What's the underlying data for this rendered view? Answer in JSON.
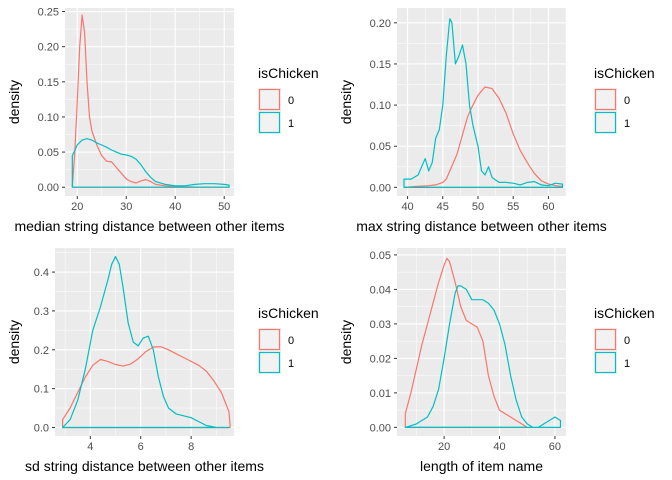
{
  "chart_data": [
    {
      "type": "line",
      "xlabel": "median string distance between other items",
      "ylabel": "density",
      "xlim": [
        17.5,
        52
      ],
      "ylim": [
        -0.0125,
        0.255
      ],
      "xticks": [
        20,
        30,
        40,
        50
      ],
      "yticks": [
        0.0,
        0.05,
        0.1,
        0.15,
        0.2,
        0.25
      ],
      "ytick_labels": [
        "0.00",
        "0.05",
        "0.10",
        "0.15",
        "0.20",
        "0.25"
      ],
      "grid": true,
      "legend": {
        "title": "isChicken",
        "entries": [
          "0",
          "1"
        ],
        "placement": "right"
      },
      "series": [
        {
          "name": "0",
          "color": "#F8766D",
          "x": [
            19,
            19.5,
            20,
            20.5,
            21,
            21.5,
            22,
            22.5,
            23,
            24,
            25,
            26,
            27,
            28,
            29,
            30,
            31,
            32,
            33,
            34,
            35,
            36,
            38,
            40,
            45,
            51
          ],
          "y": [
            0.0,
            0.05,
            0.12,
            0.2,
            0.245,
            0.22,
            0.15,
            0.1,
            0.08,
            0.06,
            0.045,
            0.037,
            0.036,
            0.028,
            0.02,
            0.012,
            0.008,
            0.006,
            0.009,
            0.011,
            0.008,
            0.004,
            0.002,
            0.001,
            0.0,
            0.0
          ]
        },
        {
          "name": "1",
          "color": "#00BFC4",
          "x": [
            19,
            19.5,
            20,
            21,
            22,
            23,
            24,
            25,
            26,
            27,
            28,
            29,
            30,
            31,
            32,
            33,
            34,
            35,
            36,
            38,
            40,
            42,
            44,
            46,
            48,
            50,
            51
          ],
          "y": [
            0.045,
            0.052,
            0.06,
            0.067,
            0.069,
            0.067,
            0.063,
            0.06,
            0.057,
            0.053,
            0.05,
            0.047,
            0.046,
            0.044,
            0.04,
            0.032,
            0.022,
            0.014,
            0.008,
            0.004,
            0.002,
            0.002,
            0.004,
            0.005,
            0.005,
            0.004,
            0.003
          ]
        }
      ]
    },
    {
      "type": "line",
      "xlabel": "max string distance between other items",
      "ylabel": "density",
      "xlim": [
        38.5,
        62.5
      ],
      "ylim": [
        -0.0105,
        0.218
      ],
      "xticks": [
        40,
        45,
        50,
        55,
        60
      ],
      "yticks": [
        0.0,
        0.05,
        0.1,
        0.15,
        0.2
      ],
      "ytick_labels": [
        "0.00",
        "0.05",
        "0.10",
        "0.15",
        "0.20"
      ],
      "grid": true,
      "legend": {
        "title": "isChicken",
        "entries": [
          "0",
          "1"
        ],
        "placement": "right"
      },
      "series": [
        {
          "name": "0",
          "color": "#F8766D",
          "x": [
            39.5,
            41,
            43,
            44,
            45,
            45.5,
            46,
            47,
            48,
            48.5,
            49,
            50,
            51,
            52,
            53,
            54,
            55,
            56,
            57,
            58,
            59,
            60,
            61,
            62
          ],
          "y": [
            0.0,
            0.001,
            0.002,
            0.003,
            0.006,
            0.01,
            0.02,
            0.04,
            0.07,
            0.085,
            0.095,
            0.112,
            0.122,
            0.12,
            0.108,
            0.09,
            0.065,
            0.045,
            0.03,
            0.017,
            0.008,
            0.004,
            0.002,
            0.001
          ]
        },
        {
          "name": "1",
          "color": "#00BFC4",
          "x": [
            39.5,
            40.5,
            41.5,
            42,
            42.5,
            43,
            43.5,
            44,
            44.5,
            45,
            45.5,
            46,
            46.3,
            46.8,
            47.3,
            47.8,
            48.3,
            48.8,
            49.3,
            50,
            50.5,
            51,
            51.5,
            52,
            53,
            54,
            55,
            56,
            57,
            58,
            59,
            60,
            61,
            62
          ],
          "y": [
            0.01,
            0.01,
            0.015,
            0.025,
            0.035,
            0.02,
            0.03,
            0.06,
            0.07,
            0.1,
            0.16,
            0.205,
            0.2,
            0.15,
            0.16,
            0.173,
            0.15,
            0.1,
            0.075,
            0.05,
            0.02,
            0.015,
            0.025,
            0.012,
            0.006,
            0.006,
            0.005,
            0.003,
            0.006,
            0.007,
            0.003,
            0.002,
            0.005,
            0.004
          ]
        }
      ]
    },
    {
      "type": "line",
      "xlabel": "sd string distance between other items",
      "ylabel": "density",
      "xlim": [
        2.6,
        9.7
      ],
      "ylim": [
        -0.022,
        0.462
      ],
      "xticks": [
        4,
        6,
        8
      ],
      "yticks": [
        0.0,
        0.1,
        0.2,
        0.3,
        0.4
      ],
      "ytick_labels": [
        "0.0",
        "0.1",
        "0.2",
        "0.3",
        "0.4"
      ],
      "grid": true,
      "legend": {
        "title": "isChicken",
        "entries": [
          "0",
          "1"
        ],
        "placement": "right"
      },
      "series": [
        {
          "name": "0",
          "color": "#F8766D",
          "x": [
            2.9,
            3.2,
            3.5,
            3.8,
            4.1,
            4.4,
            4.7,
            5.0,
            5.3,
            5.6,
            5.9,
            6.2,
            6.5,
            6.8,
            7.1,
            7.4,
            7.7,
            8.0,
            8.3,
            8.6,
            8.9,
            9.2,
            9.5,
            9.55
          ],
          "y": [
            0.02,
            0.05,
            0.09,
            0.13,
            0.16,
            0.175,
            0.17,
            0.162,
            0.158,
            0.163,
            0.177,
            0.195,
            0.207,
            0.208,
            0.2,
            0.19,
            0.18,
            0.17,
            0.16,
            0.145,
            0.12,
            0.09,
            0.04,
            0.0
          ]
        },
        {
          "name": "1",
          "color": "#00BFC4",
          "x": [
            2.9,
            3.2,
            3.5,
            3.8,
            4.1,
            4.4,
            4.7,
            4.85,
            5.0,
            5.15,
            5.3,
            5.5,
            5.7,
            5.9,
            6.1,
            6.3,
            6.5,
            6.7,
            6.9,
            7.1,
            7.4,
            7.7,
            8.0,
            8.3,
            8.6,
            9.0,
            9.5
          ],
          "y": [
            0.0,
            0.02,
            0.07,
            0.15,
            0.25,
            0.31,
            0.38,
            0.42,
            0.44,
            0.42,
            0.36,
            0.27,
            0.22,
            0.21,
            0.23,
            0.235,
            0.2,
            0.13,
            0.08,
            0.05,
            0.035,
            0.03,
            0.025,
            0.015,
            0.005,
            0.0,
            0.0
          ]
        }
      ]
    },
    {
      "type": "line",
      "xlabel": "length of item name",
      "ylabel": "density",
      "xlim": [
        3,
        64
      ],
      "ylim": [
        -0.0025,
        0.052
      ],
      "xticks": [
        20,
        40,
        60
      ],
      "yticks": [
        0.0,
        0.01,
        0.02,
        0.03,
        0.04,
        0.05
      ],
      "ytick_labels": [
        "0.00",
        "0.01",
        "0.02",
        "0.03",
        "0.04",
        "0.05"
      ],
      "grid": true,
      "legend": {
        "title": "isChicken",
        "entries": [
          "0",
          "1"
        ],
        "placement": "right"
      },
      "series": [
        {
          "name": "0",
          "color": "#F8766D",
          "x": [
            6,
            8,
            10,
            12,
            14,
            16,
            18,
            20,
            21,
            22,
            24,
            26,
            28,
            30,
            32,
            34,
            36,
            38,
            40,
            42,
            44,
            46,
            48,
            50
          ],
          "y": [
            0.004,
            0.01,
            0.017,
            0.024,
            0.03,
            0.036,
            0.042,
            0.047,
            0.049,
            0.048,
            0.042,
            0.035,
            0.031,
            0.03,
            0.029,
            0.025,
            0.015,
            0.009,
            0.005,
            0.004,
            0.003,
            0.002,
            0.001,
            0.0
          ]
        },
        {
          "name": "1",
          "color": "#00BFC4",
          "x": [
            6,
            10,
            14,
            16,
            18,
            20,
            22,
            24,
            25,
            26,
            28,
            30,
            32,
            34,
            36,
            38,
            40,
            42,
            44,
            46,
            48,
            50,
            52,
            54,
            56,
            58,
            60,
            62
          ],
          "y": [
            0.0,
            0.001,
            0.003,
            0.006,
            0.011,
            0.02,
            0.03,
            0.039,
            0.041,
            0.041,
            0.04,
            0.037,
            0.037,
            0.037,
            0.036,
            0.034,
            0.03,
            0.024,
            0.015,
            0.008,
            0.003,
            0.001,
            0.0,
            0.0,
            0.001,
            0.002,
            0.003,
            0.002
          ]
        }
      ]
    }
  ]
}
